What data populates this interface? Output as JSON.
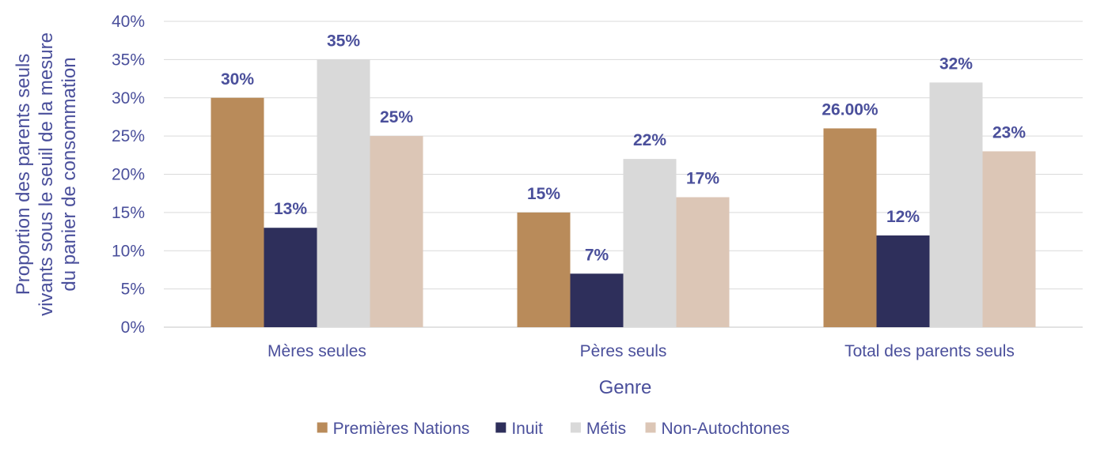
{
  "chart_data": {
    "type": "bar",
    "xlabel": "Genre",
    "ylabel_lines": [
      "Proportion des parents seuls",
      "vivants sous le seuil de la mesure",
      "du panier de consommation"
    ],
    "ylim": [
      0,
      40
    ],
    "yticks": [
      0,
      5,
      10,
      15,
      20,
      25,
      30,
      35,
      40
    ],
    "ytick_labels": [
      "0%",
      "5%",
      "10%",
      "15%",
      "20%",
      "25%",
      "30%",
      "35%",
      "40%"
    ],
    "grid": true,
    "legend_position": "bottom",
    "categories": [
      "Mères seules",
      "Pères seuls",
      "Total des parents seuls"
    ],
    "series": [
      {
        "name": "Premières Nations",
        "color": "#b98b5a",
        "values": [
          30,
          15,
          26
        ],
        "labels": [
          "30%",
          "15%",
          "26.00%"
        ]
      },
      {
        "name": "Inuit",
        "color": "#2e2f5b",
        "values": [
          13,
          7,
          12
        ],
        "labels": [
          "13%",
          "7%",
          "12%"
        ]
      },
      {
        "name": "Métis",
        "color": "#d9d9d9",
        "values": [
          35,
          22,
          32
        ],
        "labels": [
          "35%",
          "22%",
          "32%"
        ]
      },
      {
        "name": "Non-Autochtones",
        "color": "#dcc6b6",
        "values": [
          25,
          17,
          23
        ],
        "labels": [
          "25%",
          "17%",
          "23%"
        ]
      }
    ]
  }
}
